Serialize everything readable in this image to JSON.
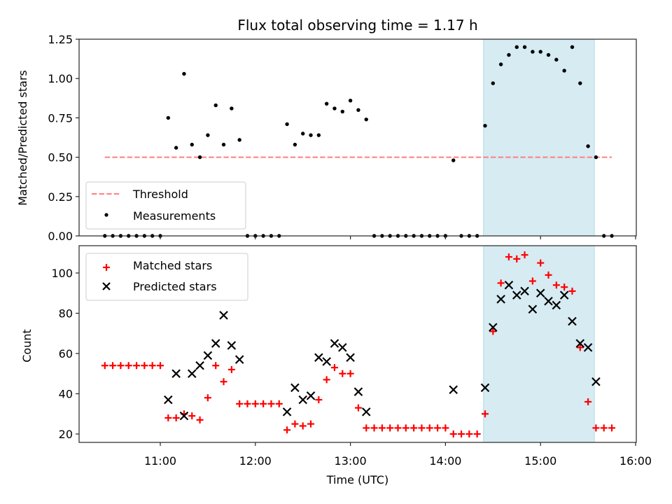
{
  "chart_data": [
    {
      "type": "scatter",
      "title": "Flux total observing time = 1.17 h",
      "xlabel": "",
      "ylabel": "Matched/Predicted stars",
      "xlim": [
        "10:12",
        "16:00"
      ],
      "ylim": [
        0,
        1.25
      ],
      "yticks": [
        0.0,
        0.25,
        0.5,
        0.75,
        1.0,
        1.25
      ],
      "ytick_labels": [
        "0.00",
        "0.25",
        "0.50",
        "0.75",
        "1.00",
        "1.25"
      ],
      "xticks": [
        "11:00",
        "12:00",
        "13:00",
        "14:00",
        "15:00",
        "16:00"
      ],
      "show_xtick_labels": false,
      "grid": false,
      "legend": {
        "placement": "lower-left",
        "entries": [
          "Threshold",
          "Measurements"
        ]
      },
      "shaded_span": {
        "start": "14:24",
        "end": "15:34",
        "color": "#add8e6"
      },
      "threshold": {
        "name": "Threshold",
        "value": 0.5,
        "start": "10:25",
        "end": "15:45",
        "color": "#ff7f7f",
        "style": "dashed"
      },
      "series": [
        {
          "name": "Measurements",
          "marker": "dot",
          "color": "#000000",
          "x": [
            "10:25",
            "10:30",
            "10:35",
            "10:40",
            "10:45",
            "10:50",
            "10:55",
            "11:00",
            "11:05",
            "11:10",
            "11:15",
            "11:20",
            "11:25",
            "11:30",
            "11:35",
            "11:40",
            "11:45",
            "11:50",
            "11:55",
            "12:00",
            "12:05",
            "12:10",
            "12:15",
            "12:20",
            "12:25",
            "12:30",
            "12:35",
            "12:40",
            "12:45",
            "12:50",
            "12:55",
            "13:00",
            "13:05",
            "13:10",
            "13:15",
            "13:20",
            "13:25",
            "13:30",
            "13:35",
            "13:40",
            "13:45",
            "13:50",
            "13:55",
            "14:00",
            "14:05",
            "14:10",
            "14:15",
            "14:20",
            "14:25",
            "14:30",
            "14:35",
            "14:40",
            "14:45",
            "14:50",
            "14:55",
            "15:00",
            "15:05",
            "15:10",
            "15:15",
            "15:20",
            "15:25",
            "15:30",
            "15:35",
            "15:40",
            "15:45"
          ],
          "y": [
            0,
            0,
            0,
            0,
            0,
            0,
            0,
            0,
            0.75,
            0.56,
            1.03,
            0.58,
            0.5,
            0.64,
            0.83,
            0.58,
            0.81,
            0.61,
            0,
            0,
            0,
            0,
            0,
            0.71,
            0.58,
            0.65,
            0.64,
            0.64,
            0.84,
            0.81,
            0.79,
            0.86,
            0.8,
            0.74,
            0,
            0,
            0,
            0,
            0,
            0,
            0,
            0,
            0,
            0,
            0.48,
            0,
            0,
            0,
            0.7,
            0.97,
            1.09,
            1.15,
            1.2,
            1.2,
            1.17,
            1.17,
            1.15,
            1.12,
            1.05,
            1.2,
            0.97,
            0.57,
            0.5,
            0,
            0
          ]
        }
      ]
    },
    {
      "type": "scatter",
      "title": "",
      "xlabel": "Time (UTC)",
      "ylabel": "Count",
      "xlim": [
        "10:12",
        "16:00"
      ],
      "ylim": [
        15.5,
        112
      ],
      "yticks": [
        20,
        40,
        60,
        80,
        100
      ],
      "ytick_labels": [
        "20",
        "40",
        "60",
        "80",
        "100"
      ],
      "xticks": [
        "11:00",
        "12:00",
        "13:00",
        "14:00",
        "15:00",
        "16:00"
      ],
      "xtick_labels": [
        "11:00",
        "12:00",
        "13:00",
        "14:00",
        "15:00",
        "16:00"
      ],
      "grid": false,
      "legend": {
        "placement": "upper-left",
        "entries": [
          "Matched stars",
          "Predicted stars"
        ]
      },
      "shaded_span": {
        "start": "14:24",
        "end": "15:34",
        "color": "#add8e6"
      },
      "series": [
        {
          "name": "Matched stars",
          "marker": "plus",
          "color": "#ff0000",
          "x": [
            "10:25",
            "10:30",
            "10:35",
            "10:40",
            "10:45",
            "10:50",
            "10:55",
            "11:00",
            "11:05",
            "11:10",
            "11:15",
            "11:20",
            "11:25",
            "11:30",
            "11:35",
            "11:40",
            "11:45",
            "11:50",
            "11:55",
            "12:00",
            "12:05",
            "12:10",
            "12:15",
            "12:20",
            "12:25",
            "12:30",
            "12:35",
            "12:40",
            "12:45",
            "12:50",
            "12:55",
            "13:00",
            "13:05",
            "13:10",
            "13:15",
            "13:20",
            "13:25",
            "13:30",
            "13:35",
            "13:40",
            "13:45",
            "13:50",
            "13:55",
            "14:00",
            "14:05",
            "14:10",
            "14:15",
            "14:20",
            "14:25",
            "14:30",
            "14:35",
            "14:40",
            "14:45",
            "14:50",
            "14:55",
            "15:00",
            "15:05",
            "15:10",
            "15:15",
            "15:20",
            "15:25",
            "15:30",
            "15:35",
            "15:40",
            "15:45"
          ],
          "y": [
            54,
            54,
            54,
            54,
            54,
            54,
            54,
            54,
            28,
            28,
            30,
            29,
            27,
            38,
            54,
            46,
            52,
            35,
            35,
            35,
            35,
            35,
            35,
            22,
            25,
            24,
            25,
            37,
            47,
            53,
            50,
            50,
            33,
            23,
            23,
            23,
            23,
            23,
            23,
            23,
            23,
            23,
            23,
            23,
            20,
            20,
            20,
            20,
            30,
            71,
            95,
            108,
            107,
            109,
            96,
            105,
            99,
            94,
            93,
            91,
            63,
            36,
            23,
            23,
            23
          ]
        },
        {
          "name": "Predicted stars",
          "marker": "x",
          "color": "#000000",
          "x": [
            "11:05",
            "11:10",
            "11:15",
            "11:20",
            "11:25",
            "11:30",
            "11:35",
            "11:40",
            "11:45",
            "11:50",
            "12:20",
            "12:25",
            "12:30",
            "12:35",
            "12:40",
            "12:45",
            "12:50",
            "12:55",
            "13:00",
            "13:05",
            "13:10",
            "14:05",
            "14:25",
            "14:30",
            "14:35",
            "14:40",
            "14:45",
            "14:50",
            "14:55",
            "15:00",
            "15:05",
            "15:10",
            "15:15",
            "15:20",
            "15:25",
            "15:30",
            "15:35"
          ],
          "y": [
            37,
            50,
            29,
            50,
            54,
            59,
            65,
            79,
            64,
            57,
            31,
            43,
            37,
            39,
            58,
            56,
            65,
            63,
            58,
            41,
            31,
            42,
            43,
            73,
            87,
            94,
            89,
            91,
            82,
            90,
            86,
            84,
            89,
            76,
            65,
            63,
            46
          ]
        }
      ]
    }
  ]
}
